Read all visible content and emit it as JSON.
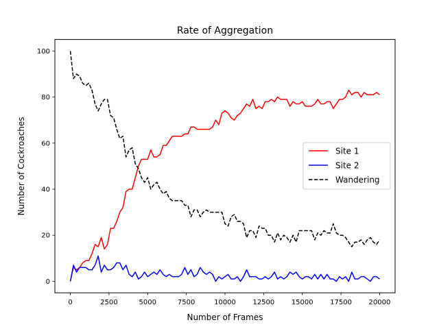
{
  "chart_data": {
    "type": "line",
    "title": "Rate of Aggregation",
    "xlabel": "Number of Frames",
    "ylabel": "Number of Cockroaches",
    "xlim": [
      -1000,
      21000
    ],
    "ylim": [
      -5,
      105
    ],
    "xticks": [
      0,
      2500,
      5000,
      7500,
      10000,
      12500,
      15000,
      17500,
      20000
    ],
    "yticks": [
      0,
      20,
      40,
      60,
      80,
      100
    ],
    "grid": false,
    "legend_position": "center-right",
    "x": [
      0,
      200,
      400,
      600,
      800,
      1000,
      1200,
      1400,
      1600,
      1800,
      2000,
      2200,
      2400,
      2600,
      2800,
      3000,
      3200,
      3400,
      3600,
      3800,
      4000,
      4200,
      4400,
      4600,
      4800,
      5000,
      5200,
      5400,
      5600,
      5800,
      6000,
      6200,
      6400,
      6600,
      6800,
      7000,
      7200,
      7400,
      7600,
      7800,
      8000,
      8200,
      8400,
      8600,
      8800,
      9000,
      9200,
      9400,
      9600,
      9800,
      10000,
      10200,
      10400,
      10600,
      10800,
      11000,
      11200,
      11400,
      11600,
      11800,
      12000,
      12200,
      12400,
      12600,
      12800,
      13000,
      13200,
      13400,
      13600,
      13800,
      14000,
      14200,
      14400,
      14600,
      14800,
      15000,
      15200,
      15400,
      15600,
      15800,
      16000,
      16200,
      16400,
      16600,
      16800,
      17000,
      17200,
      17400,
      17600,
      17800,
      18000,
      18200,
      18400,
      18600,
      18800,
      19000,
      19200,
      19400,
      19600,
      19800,
      20000
    ],
    "series": [
      {
        "name": "Site 1",
        "color": "#ff0000",
        "dash": "solid",
        "values": [
          0,
          6,
          5,
          6,
          8,
          9,
          9,
          12,
          16,
          15,
          19,
          14,
          16,
          23,
          23,
          26,
          30,
          32,
          39,
          40,
          40,
          45,
          50,
          53,
          53,
          53,
          57,
          54,
          54,
          55,
          59,
          59,
          61,
          63,
          63,
          63,
          63,
          64,
          64,
          67,
          67,
          66,
          66,
          66,
          66,
          66,
          67,
          70,
          68,
          73,
          74,
          73,
          71,
          70,
          72,
          73,
          75,
          77,
          76,
          79,
          75,
          76,
          75,
          78,
          78,
          79,
          78,
          80,
          79,
          79,
          79,
          76,
          78,
          77,
          77,
          78,
          76,
          76,
          76,
          77,
          79,
          77,
          77,
          78,
          78,
          75,
          77,
          79,
          79,
          80,
          83,
          81,
          82,
          82,
          80,
          82,
          81,
          81,
          81,
          82,
          81
        ]
      },
      {
        "name": "Site 2",
        "color": "#0000ff",
        "dash": "solid",
        "values": [
          0,
          7,
          4,
          6,
          6,
          6,
          5,
          5,
          7,
          11,
          4,
          7,
          5,
          5,
          6,
          8,
          8,
          5,
          7,
          3,
          2,
          4,
          1,
          2,
          4,
          2,
          3,
          4,
          3,
          5,
          3,
          2,
          3,
          2,
          2,
          2,
          3,
          6,
          3,
          5,
          2,
          3,
          6,
          4,
          3,
          4,
          3,
          0,
          2,
          1,
          2,
          3,
          1,
          1,
          2,
          0,
          2,
          5,
          2,
          2,
          2,
          1,
          1,
          2,
          1,
          2,
          4,
          1,
          2,
          1,
          2,
          4,
          3,
          4,
          2,
          1,
          2,
          2,
          1,
          3,
          1,
          3,
          1,
          3,
          1,
          1,
          0,
          2,
          1,
          2,
          0,
          4,
          1,
          1,
          2,
          2,
          1,
          0,
          2,
          2,
          1
        ]
      },
      {
        "name": "Wandering",
        "color": "#000000",
        "dash": "dashed",
        "values": [
          100,
          88,
          90,
          89,
          86,
          85,
          86,
          83,
          77,
          74,
          77,
          79,
          79,
          72,
          71,
          66,
          62,
          63,
          54,
          57,
          58,
          51,
          49,
          45,
          43,
          45,
          40,
          42,
          43,
          40,
          38,
          39,
          36,
          35,
          35,
          35,
          35,
          33,
          33,
          28,
          31,
          31,
          28,
          30,
          31,
          30,
          30,
          30,
          30,
          30,
          25,
          24,
          28,
          29,
          26,
          26,
          25,
          19,
          22,
          22,
          19,
          24,
          23,
          23,
          20,
          20,
          17,
          21,
          18,
          20,
          19,
          17,
          20,
          17,
          22,
          22,
          22,
          22,
          22,
          18,
          21,
          20,
          22,
          21,
          21,
          25,
          21,
          20,
          20,
          19,
          17,
          15,
          17,
          17,
          18,
          16,
          18,
          19,
          17,
          16,
          18
        ]
      }
    ]
  }
}
